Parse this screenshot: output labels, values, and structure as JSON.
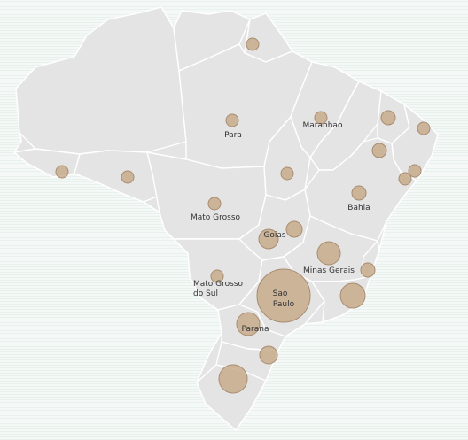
{
  "map": {
    "colors": {
      "land": "#e4e4e4",
      "border": "#ffffff",
      "bubble_fill": "#c8ab8c",
      "bubble_stroke": "#a98c70",
      "label": "#333333"
    },
    "labels": {
      "para": "Para",
      "maranhao": "Maranhao",
      "mato_grosso": "Mato Grosso",
      "bahia": "Bahia",
      "goias": "Goias",
      "minas_gerais": "Minas Gerais",
      "mato_grosso_do_sul_1": "Mato Grosso",
      "mato_grosso_do_sul_2": "do Sul",
      "sao_paulo_1": "Sao",
      "sao_paulo_2": "Paulo",
      "parana": "Parana"
    }
  }
}
